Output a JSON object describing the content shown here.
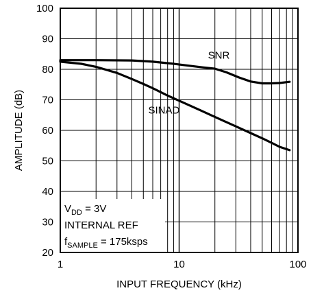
{
  "chart_data": {
    "type": "line",
    "x_scale": "log",
    "xlim": [
      1,
      100
    ],
    "ylim": [
      20,
      100
    ],
    "xlabel": "INPUT FREQUENCY (kHz)",
    "ylabel": "AMPLITUDE (dB)",
    "x_ticks": [
      1,
      10,
      100
    ],
    "y_ticks": [
      20,
      30,
      40,
      50,
      60,
      70,
      80,
      90,
      100
    ],
    "grid": true,
    "series": [
      {
        "name": "SNR",
        "label_at": {
          "x": 17.5,
          "y": 83.5
        },
        "points": [
          [
            1,
            83
          ],
          [
            2,
            83
          ],
          [
            4,
            82.9
          ],
          [
            6,
            82.5
          ],
          [
            9,
            81.8
          ],
          [
            12,
            81.2
          ],
          [
            16,
            80.6
          ],
          [
            20,
            80.2
          ],
          [
            25,
            79
          ],
          [
            32,
            77.3
          ],
          [
            40,
            76
          ],
          [
            50,
            75.4
          ],
          [
            60,
            75.4
          ],
          [
            70,
            75.5
          ],
          [
            85,
            75.9
          ]
        ]
      },
      {
        "name": "SINAD",
        "label_at": {
          "x": 5.5,
          "y": 65.5
        },
        "points": [
          [
            1,
            82.5
          ],
          [
            1.5,
            81.8
          ],
          [
            2,
            80.8
          ],
          [
            3,
            78.8
          ],
          [
            4,
            76.8
          ],
          [
            5,
            75.2
          ],
          [
            6,
            73.8
          ],
          [
            8,
            71.4
          ],
          [
            10,
            69.7
          ],
          [
            15,
            66.6
          ],
          [
            20,
            64.4
          ],
          [
            30,
            61.3
          ],
          [
            40,
            59.1
          ],
          [
            50,
            57.4
          ],
          [
            60,
            55.9
          ],
          [
            70,
            54.6
          ],
          [
            85,
            53.5
          ]
        ]
      }
    ],
    "annotation": {
      "lines": [
        {
          "main": "V",
          "sub": "DD",
          "rest": " = 3V"
        },
        {
          "main": "INTERNAL REF",
          "sub": "",
          "rest": ""
        },
        {
          "main": "f",
          "sub": "SAMPLE",
          "rest": " = 175ksps"
        }
      ]
    }
  }
}
